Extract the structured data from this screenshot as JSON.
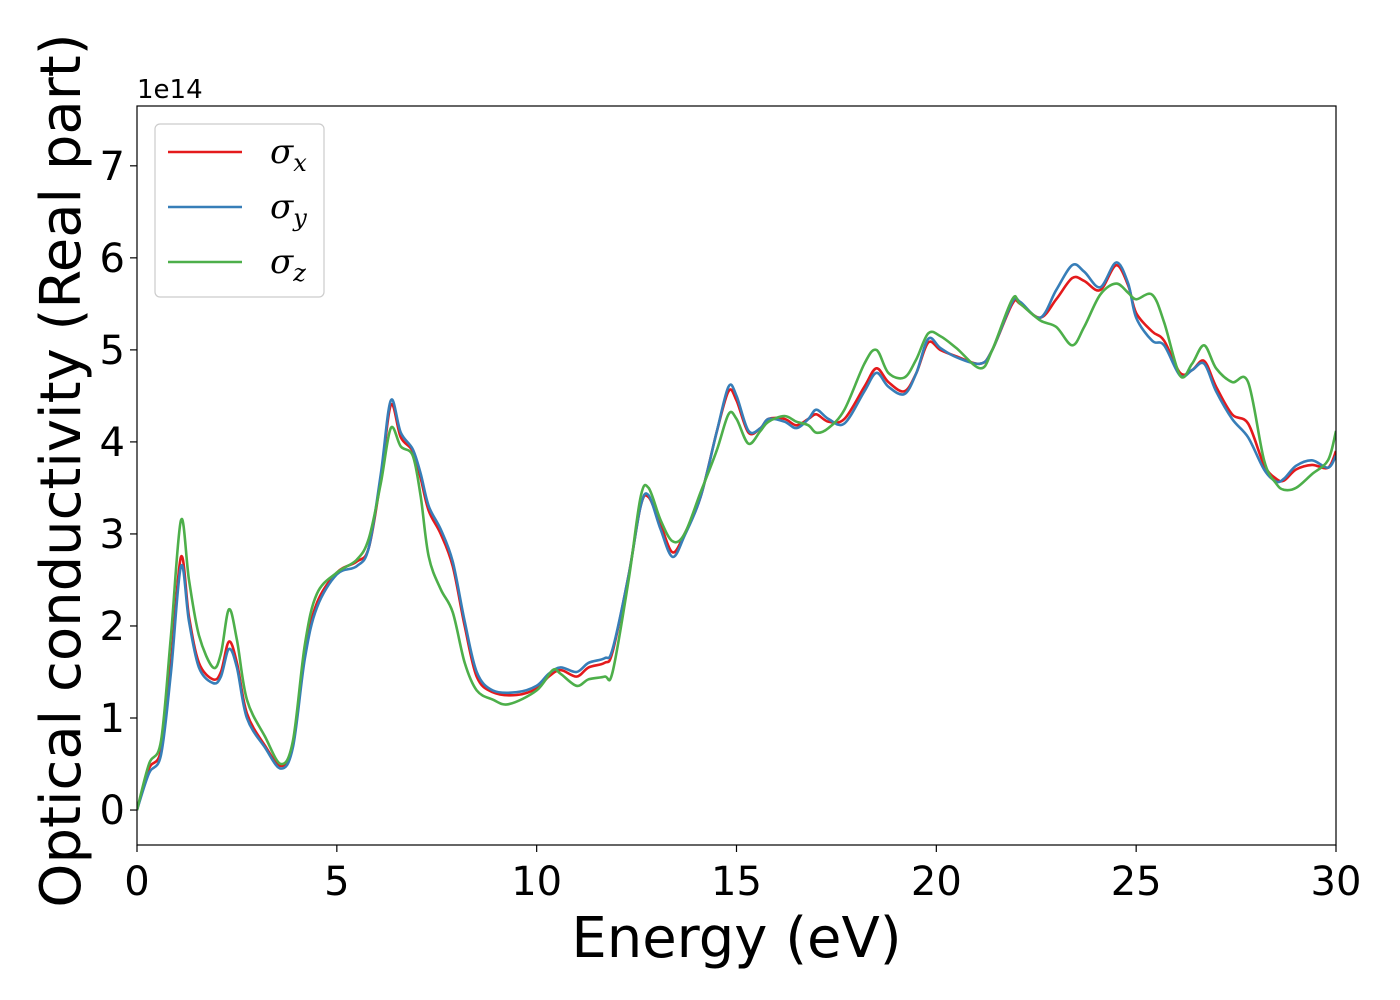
{
  "chart_data": {
    "type": "line",
    "xlabel": "Energy (eV)",
    "ylabel": "Optical conductivity (Real part)",
    "y_offset_label": "1e14",
    "xlim": [
      0,
      30
    ],
    "ylim": [
      -0.38,
      7.65
    ],
    "x_ticks": [
      "0",
      "5",
      "10",
      "15",
      "20",
      "25",
      "30"
    ],
    "y_ticks": [
      "0",
      "1",
      "2",
      "3",
      "4",
      "5",
      "6",
      "7"
    ],
    "grid": false,
    "legend_position": "top-left",
    "series": [
      {
        "name": "σx",
        "symbol": "σ",
        "subscript": "x",
        "color": "#e41a1c",
        "points": [
          [
            0,
            0
          ],
          [
            0.3,
            0.45
          ],
          [
            0.6,
            0.65
          ],
          [
            0.85,
            1.6
          ],
          [
            1.1,
            2.75
          ],
          [
            1.3,
            2.1
          ],
          [
            1.55,
            1.6
          ],
          [
            1.9,
            1.42
          ],
          [
            2.1,
            1.5
          ],
          [
            2.3,
            1.83
          ],
          [
            2.5,
            1.6
          ],
          [
            2.75,
            1.05
          ],
          [
            3.2,
            0.7
          ],
          [
            3.6,
            0.48
          ],
          [
            3.9,
            0.7
          ],
          [
            4.2,
            1.7
          ],
          [
            4.5,
            2.25
          ],
          [
            5.0,
            2.58
          ],
          [
            5.5,
            2.7
          ],
          [
            5.8,
            2.85
          ],
          [
            6.1,
            3.6
          ],
          [
            6.35,
            4.4
          ],
          [
            6.6,
            4.05
          ],
          [
            6.9,
            3.9
          ],
          [
            7.1,
            3.6
          ],
          [
            7.3,
            3.25
          ],
          [
            7.6,
            3.0
          ],
          [
            7.9,
            2.65
          ],
          [
            8.2,
            2.0
          ],
          [
            8.5,
            1.45
          ],
          [
            8.9,
            1.28
          ],
          [
            9.5,
            1.25
          ],
          [
            10.0,
            1.32
          ],
          [
            10.3,
            1.45
          ],
          [
            10.6,
            1.52
          ],
          [
            11.0,
            1.45
          ],
          [
            11.3,
            1.55
          ],
          [
            11.7,
            1.6
          ],
          [
            11.9,
            1.72
          ],
          [
            12.3,
            2.55
          ],
          [
            12.6,
            3.3
          ],
          [
            12.8,
            3.4
          ],
          [
            13.1,
            3.1
          ],
          [
            13.4,
            2.8
          ],
          [
            13.7,
            3.0
          ],
          [
            14.1,
            3.4
          ],
          [
            14.5,
            4.1
          ],
          [
            14.8,
            4.55
          ],
          [
            15.0,
            4.45
          ],
          [
            15.3,
            4.1
          ],
          [
            15.6,
            4.15
          ],
          [
            15.8,
            4.25
          ],
          [
            16.2,
            4.25
          ],
          [
            16.5,
            4.18
          ],
          [
            16.8,
            4.25
          ],
          [
            17.0,
            4.3
          ],
          [
            17.3,
            4.22
          ],
          [
            17.7,
            4.25
          ],
          [
            18.2,
            4.6
          ],
          [
            18.5,
            4.8
          ],
          [
            18.8,
            4.65
          ],
          [
            19.2,
            4.55
          ],
          [
            19.5,
            4.75
          ],
          [
            19.8,
            5.08
          ],
          [
            20.1,
            5.0
          ],
          [
            20.5,
            4.93
          ],
          [
            21.1,
            4.85
          ],
          [
            21.4,
            5.0
          ],
          [
            21.9,
            5.5
          ],
          [
            22.1,
            5.5
          ],
          [
            22.6,
            5.35
          ],
          [
            23.0,
            5.55
          ],
          [
            23.4,
            5.78
          ],
          [
            23.7,
            5.75
          ],
          [
            24.1,
            5.65
          ],
          [
            24.5,
            5.92
          ],
          [
            24.8,
            5.7
          ],
          [
            25.0,
            5.4
          ],
          [
            25.4,
            5.2
          ],
          [
            25.7,
            5.1
          ],
          [
            26.1,
            4.75
          ],
          [
            26.4,
            4.78
          ],
          [
            26.7,
            4.88
          ],
          [
            27.0,
            4.6
          ],
          [
            27.4,
            4.3
          ],
          [
            27.8,
            4.2
          ],
          [
            28.2,
            3.75
          ],
          [
            28.5,
            3.6
          ],
          [
            28.7,
            3.58
          ],
          [
            29.0,
            3.7
          ],
          [
            29.4,
            3.75
          ],
          [
            29.8,
            3.72
          ],
          [
            30.0,
            3.9
          ]
        ]
      },
      {
        "name": "σy",
        "symbol": "σ",
        "subscript": "y",
        "color": "#377eb8",
        "points": [
          [
            0,
            0
          ],
          [
            0.3,
            0.4
          ],
          [
            0.6,
            0.6
          ],
          [
            0.85,
            1.5
          ],
          [
            1.1,
            2.65
          ],
          [
            1.3,
            2.05
          ],
          [
            1.55,
            1.55
          ],
          [
            1.9,
            1.38
          ],
          [
            2.1,
            1.45
          ],
          [
            2.3,
            1.75
          ],
          [
            2.5,
            1.55
          ],
          [
            2.75,
            1.0
          ],
          [
            3.2,
            0.68
          ],
          [
            3.6,
            0.45
          ],
          [
            3.9,
            0.68
          ],
          [
            4.2,
            1.65
          ],
          [
            4.5,
            2.2
          ],
          [
            5.0,
            2.56
          ],
          [
            5.5,
            2.65
          ],
          [
            5.8,
            2.85
          ],
          [
            6.1,
            3.65
          ],
          [
            6.35,
            4.45
          ],
          [
            6.6,
            4.1
          ],
          [
            6.9,
            3.92
          ],
          [
            7.1,
            3.65
          ],
          [
            7.3,
            3.3
          ],
          [
            7.6,
            3.05
          ],
          [
            7.9,
            2.7
          ],
          [
            8.2,
            2.05
          ],
          [
            8.5,
            1.5
          ],
          [
            8.9,
            1.3
          ],
          [
            9.5,
            1.28
          ],
          [
            10.0,
            1.35
          ],
          [
            10.3,
            1.48
          ],
          [
            10.6,
            1.55
          ],
          [
            11.0,
            1.5
          ],
          [
            11.3,
            1.6
          ],
          [
            11.7,
            1.65
          ],
          [
            11.9,
            1.75
          ],
          [
            12.3,
            2.55
          ],
          [
            12.6,
            3.3
          ],
          [
            12.8,
            3.42
          ],
          [
            13.1,
            3.05
          ],
          [
            13.4,
            2.75
          ],
          [
            13.7,
            2.98
          ],
          [
            14.1,
            3.4
          ],
          [
            14.5,
            4.1
          ],
          [
            14.8,
            4.6
          ],
          [
            15.0,
            4.5
          ],
          [
            15.3,
            4.12
          ],
          [
            15.6,
            4.15
          ],
          [
            15.8,
            4.25
          ],
          [
            16.2,
            4.22
          ],
          [
            16.5,
            4.15
          ],
          [
            16.8,
            4.25
          ],
          [
            17.0,
            4.35
          ],
          [
            17.3,
            4.25
          ],
          [
            17.7,
            4.2
          ],
          [
            18.2,
            4.55
          ],
          [
            18.5,
            4.75
          ],
          [
            18.8,
            4.6
          ],
          [
            19.2,
            4.52
          ],
          [
            19.5,
            4.75
          ],
          [
            19.8,
            5.12
          ],
          [
            20.1,
            5.02
          ],
          [
            20.5,
            4.92
          ],
          [
            21.1,
            4.85
          ],
          [
            21.4,
            5.0
          ],
          [
            21.9,
            5.52
          ],
          [
            22.1,
            5.52
          ],
          [
            22.6,
            5.35
          ],
          [
            23.0,
            5.65
          ],
          [
            23.4,
            5.92
          ],
          [
            23.7,
            5.85
          ],
          [
            24.1,
            5.68
          ],
          [
            24.5,
            5.95
          ],
          [
            24.8,
            5.72
          ],
          [
            25.0,
            5.35
          ],
          [
            25.4,
            5.1
          ],
          [
            25.7,
            5.05
          ],
          [
            26.1,
            4.72
          ],
          [
            26.4,
            4.78
          ],
          [
            26.7,
            4.85
          ],
          [
            27.0,
            4.55
          ],
          [
            27.4,
            4.25
          ],
          [
            27.8,
            4.05
          ],
          [
            28.2,
            3.7
          ],
          [
            28.5,
            3.57
          ],
          [
            28.7,
            3.6
          ],
          [
            29.0,
            3.74
          ],
          [
            29.4,
            3.8
          ],
          [
            29.8,
            3.72
          ],
          [
            30.0,
            3.85
          ]
        ]
      },
      {
        "name": "σz",
        "symbol": "σ",
        "subscript": "z",
        "color": "#4daf4a",
        "points": [
          [
            0,
            0
          ],
          [
            0.3,
            0.5
          ],
          [
            0.6,
            0.75
          ],
          [
            0.85,
            1.9
          ],
          [
            1.1,
            3.15
          ],
          [
            1.3,
            2.5
          ],
          [
            1.55,
            1.9
          ],
          [
            1.9,
            1.55
          ],
          [
            2.1,
            1.7
          ],
          [
            2.3,
            2.18
          ],
          [
            2.5,
            1.85
          ],
          [
            2.75,
            1.2
          ],
          [
            3.2,
            0.8
          ],
          [
            3.6,
            0.5
          ],
          [
            3.9,
            0.75
          ],
          [
            4.2,
            1.8
          ],
          [
            4.5,
            2.35
          ],
          [
            5.0,
            2.58
          ],
          [
            5.5,
            2.72
          ],
          [
            5.8,
            2.95
          ],
          [
            6.1,
            3.55
          ],
          [
            6.35,
            4.15
          ],
          [
            6.6,
            3.95
          ],
          [
            6.9,
            3.85
          ],
          [
            7.1,
            3.4
          ],
          [
            7.3,
            2.75
          ],
          [
            7.6,
            2.4
          ],
          [
            7.9,
            2.15
          ],
          [
            8.2,
            1.6
          ],
          [
            8.5,
            1.3
          ],
          [
            8.9,
            1.2
          ],
          [
            9.3,
            1.15
          ],
          [
            10.0,
            1.3
          ],
          [
            10.4,
            1.52
          ],
          [
            10.6,
            1.48
          ],
          [
            11.0,
            1.35
          ],
          [
            11.3,
            1.42
          ],
          [
            11.7,
            1.45
          ],
          [
            11.9,
            1.5
          ],
          [
            12.3,
            2.5
          ],
          [
            12.6,
            3.4
          ],
          [
            12.8,
            3.5
          ],
          [
            13.1,
            3.15
          ],
          [
            13.4,
            2.92
          ],
          [
            13.7,
            3.0
          ],
          [
            14.1,
            3.45
          ],
          [
            14.5,
            3.9
          ],
          [
            14.8,
            4.3
          ],
          [
            15.0,
            4.25
          ],
          [
            15.3,
            3.98
          ],
          [
            15.6,
            4.12
          ],
          [
            15.8,
            4.22
          ],
          [
            16.2,
            4.28
          ],
          [
            16.5,
            4.22
          ],
          [
            16.8,
            4.18
          ],
          [
            17.0,
            4.1
          ],
          [
            17.3,
            4.15
          ],
          [
            17.7,
            4.35
          ],
          [
            18.2,
            4.85
          ],
          [
            18.5,
            5.0
          ],
          [
            18.8,
            4.75
          ],
          [
            19.2,
            4.7
          ],
          [
            19.5,
            4.9
          ],
          [
            19.8,
            5.18
          ],
          [
            20.1,
            5.15
          ],
          [
            20.5,
            5.02
          ],
          [
            21.1,
            4.8
          ],
          [
            21.4,
            5.0
          ],
          [
            21.9,
            5.55
          ],
          [
            22.1,
            5.5
          ],
          [
            22.6,
            5.32
          ],
          [
            23.0,
            5.25
          ],
          [
            23.4,
            5.05
          ],
          [
            23.7,
            5.25
          ],
          [
            24.1,
            5.6
          ],
          [
            24.5,
            5.72
          ],
          [
            24.8,
            5.62
          ],
          [
            25.0,
            5.55
          ],
          [
            25.4,
            5.6
          ],
          [
            25.7,
            5.3
          ],
          [
            26.1,
            4.72
          ],
          [
            26.4,
            4.85
          ],
          [
            26.7,
            5.05
          ],
          [
            27.0,
            4.8
          ],
          [
            27.4,
            4.65
          ],
          [
            27.8,
            4.65
          ],
          [
            28.2,
            3.8
          ],
          [
            28.5,
            3.55
          ],
          [
            28.7,
            3.48
          ],
          [
            29.0,
            3.5
          ],
          [
            29.4,
            3.65
          ],
          [
            29.8,
            3.8
          ],
          [
            30.0,
            4.12
          ]
        ]
      }
    ]
  }
}
